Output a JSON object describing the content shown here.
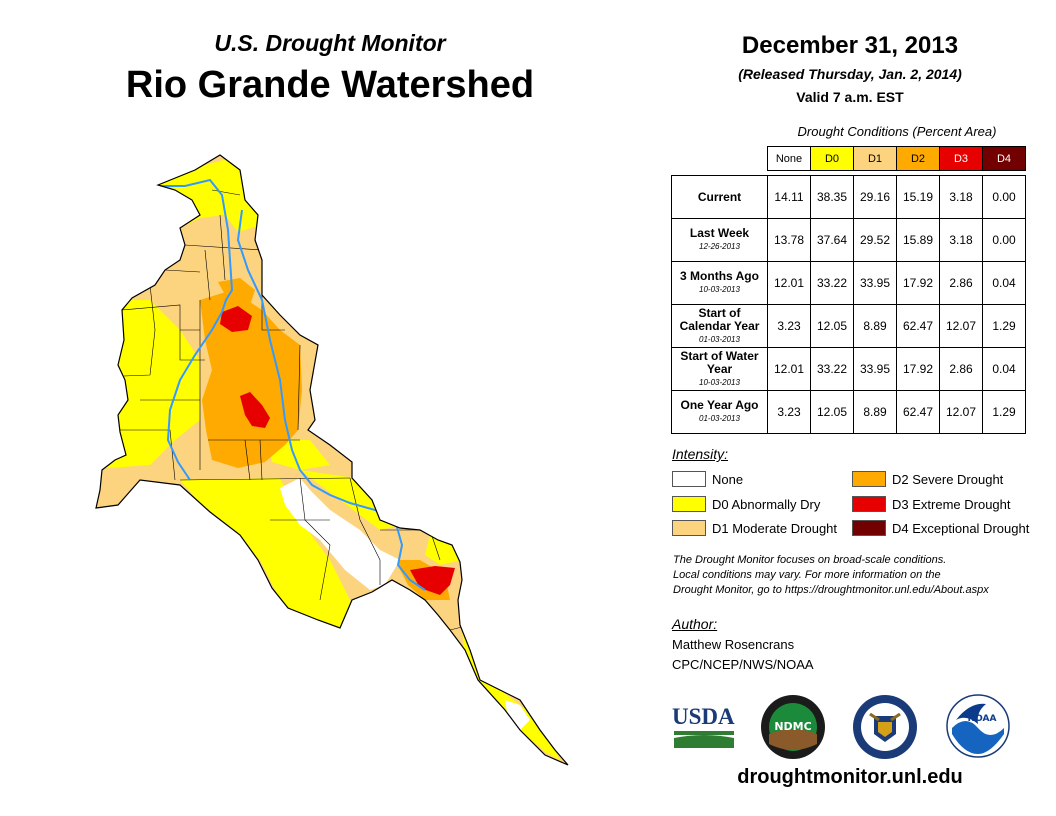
{
  "header": {
    "subtitle": "U.S. Drought Monitor",
    "title": "Rio Grande Watershed",
    "date": "December 31, 2013",
    "released": "(Released Thursday, Jan. 2, 2014)",
    "valid": "Valid 7 a.m. EST"
  },
  "table": {
    "caption": "Drought Conditions (Percent Area)",
    "columns": [
      "None",
      "D0",
      "D1",
      "D2",
      "D3",
      "D4"
    ],
    "column_colors": [
      "#ffffff",
      "#ffff00",
      "#fcd37f",
      "#ffaa00",
      "#e60000",
      "#730000"
    ],
    "rows": [
      {
        "label": "Current",
        "date": "",
        "values": [
          "14.11",
          "38.35",
          "29.16",
          "15.19",
          "3.18",
          "0.00"
        ]
      },
      {
        "label": "Last Week",
        "date": "12-26-2013",
        "values": [
          "13.78",
          "37.64",
          "29.52",
          "15.89",
          "3.18",
          "0.00"
        ]
      },
      {
        "label": "3 Months Ago",
        "date": "10-03-2013",
        "values": [
          "12.01",
          "33.22",
          "33.95",
          "17.92",
          "2.86",
          "0.04"
        ]
      },
      {
        "label": "Start of Calendar Year",
        "date": "01-03-2013",
        "values": [
          "3.23",
          "12.05",
          "8.89",
          "62.47",
          "12.07",
          "1.29"
        ]
      },
      {
        "label": "Start of Water Year",
        "date": "10-03-2013",
        "values": [
          "12.01",
          "33.22",
          "33.95",
          "17.92",
          "2.86",
          "0.04"
        ]
      },
      {
        "label": "One Year Ago",
        "date": "01-03-2013",
        "values": [
          "3.23",
          "12.05",
          "8.89",
          "62.47",
          "12.07",
          "1.29"
        ]
      }
    ]
  },
  "legend": {
    "title": "Intensity:",
    "items": [
      {
        "label": "None",
        "color": "#ffffff"
      },
      {
        "label": "D0 Abnormally Dry",
        "color": "#ffff00"
      },
      {
        "label": "D1 Moderate Drought",
        "color": "#fcd37f"
      },
      {
        "label": "D2 Severe Drought",
        "color": "#ffaa00"
      },
      {
        "label": "D3 Extreme Drought",
        "color": "#e60000"
      },
      {
        "label": "D4 Exceptional Drought",
        "color": "#730000"
      }
    ]
  },
  "note": {
    "line1": "The Drought Monitor focuses on broad-scale conditions.",
    "line2": "Local conditions may vary. For more information on the",
    "line3": "Drought Monitor, go to https://droughtmonitor.unl.edu/About.aspx"
  },
  "author": {
    "title": "Author:",
    "name": "Matthew Rosencrans",
    "org": "CPC/NCEP/NWS/NOAA"
  },
  "logos": {
    "usda": "USDA",
    "ndmc": "NDMC",
    "noaa": "NOAA"
  },
  "website": "droughtmonitor.unl.edu",
  "map": {
    "river_color": "#3399ff"
  }
}
